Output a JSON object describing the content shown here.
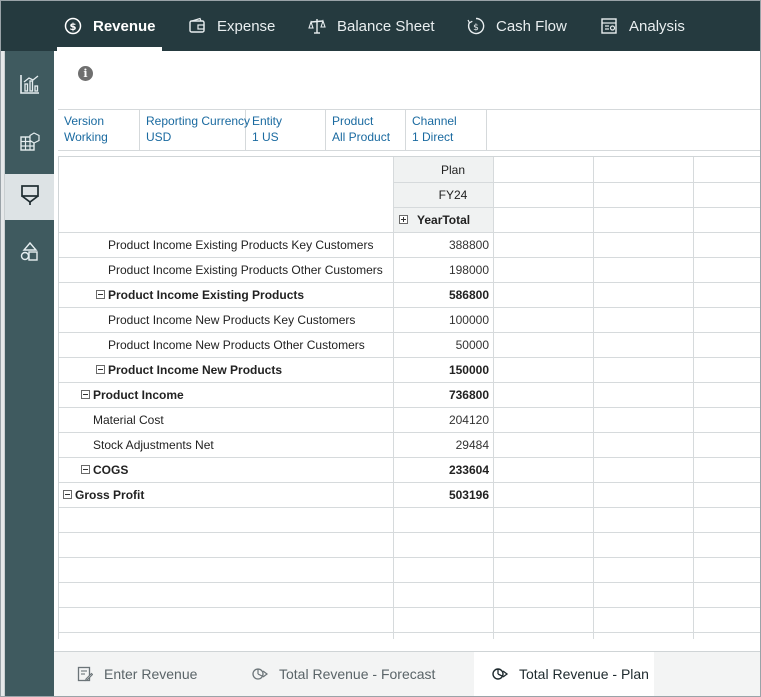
{
  "topnav": {
    "tabs": [
      {
        "label": "Revenue",
        "icon": "revenue-icon",
        "active": true
      },
      {
        "label": "Expense",
        "icon": "wallet-icon",
        "active": false
      },
      {
        "label": "Balance Sheet",
        "icon": "balance-scale-icon",
        "active": false
      },
      {
        "label": "Cash Flow",
        "icon": "cash-flow-icon",
        "active": false
      },
      {
        "label": "Analysis",
        "icon": "analysis-icon",
        "active": false
      }
    ]
  },
  "sidebar": {
    "items": [
      {
        "icon": "chart-icon",
        "active": false
      },
      {
        "icon": "grid-cube-icon",
        "active": false
      },
      {
        "icon": "form-icon",
        "active": true
      },
      {
        "icon": "shapes-icon",
        "active": false
      }
    ]
  },
  "pov": [
    {
      "label": "Version",
      "value": "Working"
    },
    {
      "label": "Reporting Currency",
      "value": "USD"
    },
    {
      "label": "Entity",
      "value": "1 US"
    },
    {
      "label": "Product",
      "value": "All Product"
    },
    {
      "label": "Channel",
      "value": "1 Direct"
    }
  ],
  "grid": {
    "column_headers": {
      "scenario": "Plan",
      "year": "FY24",
      "period": "YearTotal"
    },
    "rows": [
      {
        "label": "Product Income Existing Products Key Customers",
        "value": "388800",
        "bold": false,
        "collapsible": false,
        "indent": 3
      },
      {
        "label": "Product Income Existing Products Other Customers",
        "value": "198000",
        "bold": false,
        "collapsible": false,
        "indent": 3
      },
      {
        "label": "Product Income Existing Products",
        "value": "586800",
        "bold": true,
        "collapsible": true,
        "indent": 2
      },
      {
        "label": "Product Income New Products Key Customers",
        "value": "100000",
        "bold": false,
        "collapsible": false,
        "indent": 3
      },
      {
        "label": "Product Income New Products Other Customers",
        "value": "50000",
        "bold": false,
        "collapsible": false,
        "indent": 3
      },
      {
        "label": "Product Income New Products",
        "value": "150000",
        "bold": true,
        "collapsible": true,
        "indent": 2
      },
      {
        "label": "Product Income",
        "value": "736800",
        "bold": true,
        "collapsible": true,
        "indent": 1
      },
      {
        "label": "Material Cost",
        "value": "204120",
        "bold": false,
        "collapsible": false,
        "indent": 1.5
      },
      {
        "label": "Stock Adjustments Net",
        "value": "29484",
        "bold": false,
        "collapsible": false,
        "indent": 1.5
      },
      {
        "label": "COGS",
        "value": "233604",
        "bold": true,
        "collapsible": true,
        "indent": 1
      },
      {
        "label": "Gross Profit",
        "value": "503196",
        "bold": true,
        "collapsible": true,
        "indent": 0
      }
    ]
  },
  "bottom_tabs": [
    {
      "label": "Enter Revenue",
      "icon": "edit-form-icon",
      "active": false
    },
    {
      "label": "Total Revenue - Forecast",
      "icon": "dashboard-icon",
      "active": false
    },
    {
      "label": "Total Revenue - Plan",
      "icon": "dashboard-icon",
      "active": true
    }
  ]
}
